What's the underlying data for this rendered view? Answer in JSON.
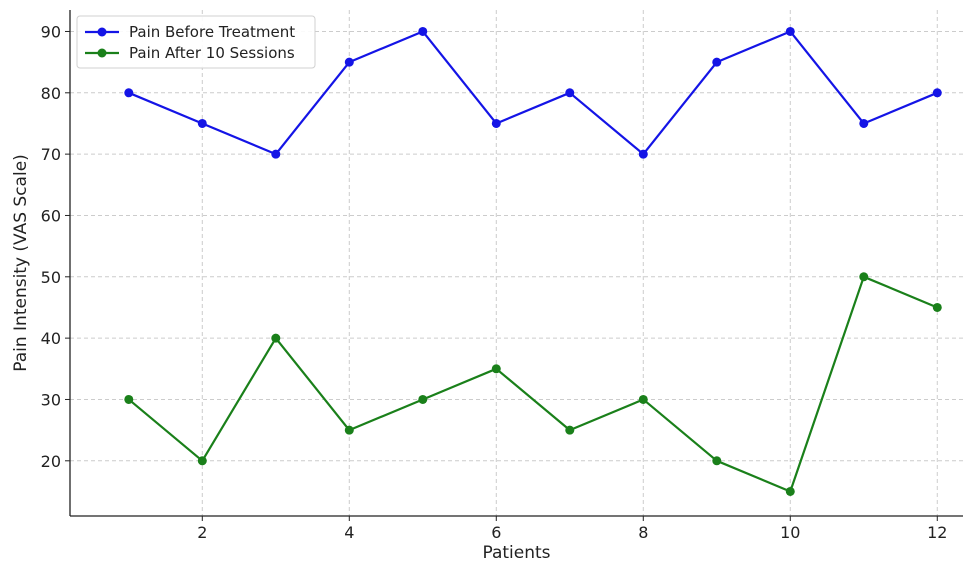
{
  "chart_data": {
    "type": "line",
    "xlabel": "Patients",
    "ylabel": "Pain Intensity (VAS Scale)",
    "x": [
      1,
      2,
      3,
      4,
      5,
      6,
      7,
      8,
      9,
      10,
      11,
      12
    ],
    "xticks": [
      2,
      4,
      6,
      8,
      10,
      12
    ],
    "yticks": [
      20,
      30,
      40,
      50,
      60,
      70,
      80,
      90
    ],
    "xlim": [
      0.2,
      12.35
    ],
    "ylim": [
      11,
      93.5
    ],
    "grid": true,
    "legend_position": "top-left",
    "series": [
      {
        "name": "Pain Before Treatment",
        "color": "#1414e6",
        "values": [
          80,
          75,
          70,
          85,
          90,
          75,
          80,
          70,
          85,
          90,
          75,
          80
        ]
      },
      {
        "name": "Pain After 10 Sessions",
        "color": "#1a801a",
        "values": [
          30,
          20,
          40,
          25,
          30,
          35,
          25,
          30,
          20,
          15,
          50,
          45
        ]
      }
    ]
  }
}
